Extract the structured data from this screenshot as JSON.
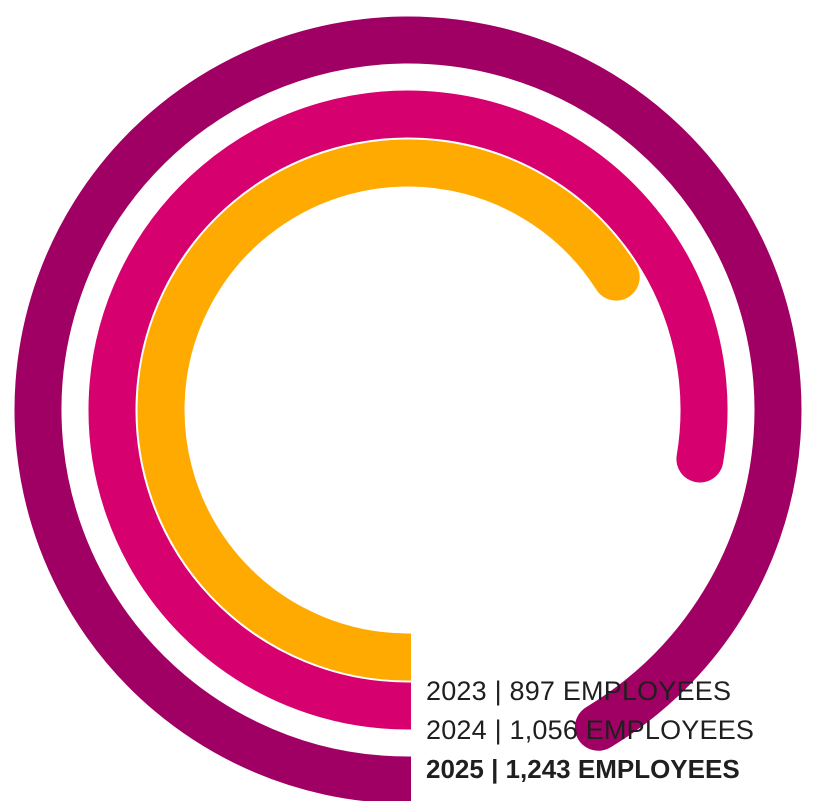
{
  "chart_data": {
    "type": "radial-bar",
    "title": "",
    "unit": "EMPLOYEES",
    "series": [
      {
        "year": "2023",
        "value": 897,
        "label": "2023 | 897 EMPLOYEES",
        "color": "#FFAA00"
      },
      {
        "year": "2024",
        "value": 1056,
        "label": "2024 | 1,056 EMPLOYEES",
        "color": "#D6006E"
      },
      {
        "year": "2025",
        "value": 1243,
        "label": "2025 | 1,243 EMPLOYEES",
        "color": "#A00063",
        "emphasized": true
      }
    ],
    "scale": {
      "min": 0,
      "max": 1360
    },
    "legend_placement": "bottom-right"
  }
}
